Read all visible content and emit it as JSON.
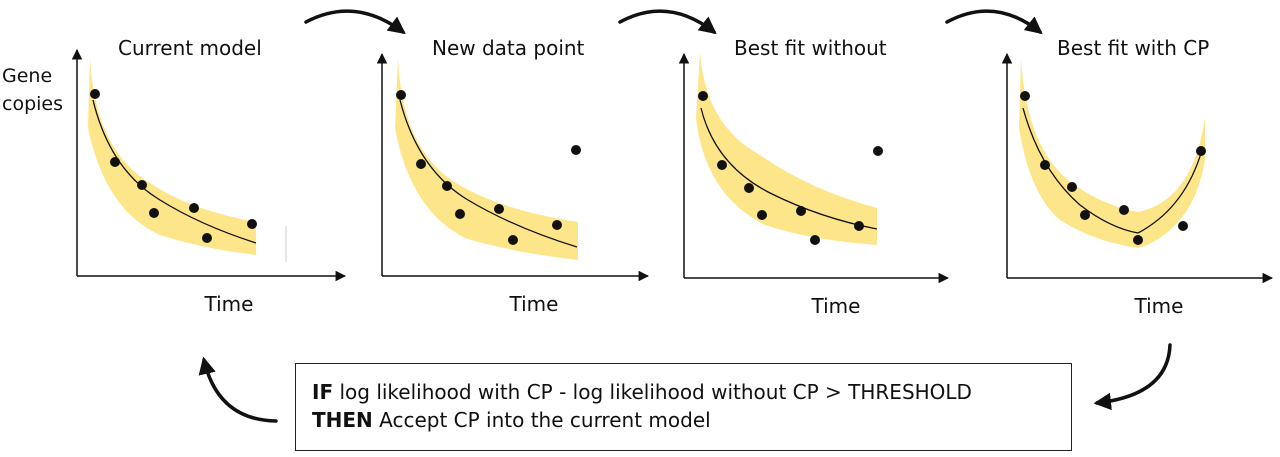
{
  "panels": [
    {
      "title": "Current model",
      "xlabel": "Time",
      "ylabel": "Gene copies"
    },
    {
      "title": "New data point",
      "xlabel": "Time"
    },
    {
      "title": "Best fit without",
      "xlabel": "Time"
    },
    {
      "title": "Best fit with CP",
      "xlabel": "Time"
    }
  ],
  "rule": {
    "if_keyword": "IF",
    "if_text": "log likelihood with CP - log likelihood without CP > THRESHOLD",
    "then_keyword": "THEN",
    "then_text": "Accept CP into the current model"
  },
  "colors": {
    "band": "#fde58a",
    "ink": "#111111"
  }
}
